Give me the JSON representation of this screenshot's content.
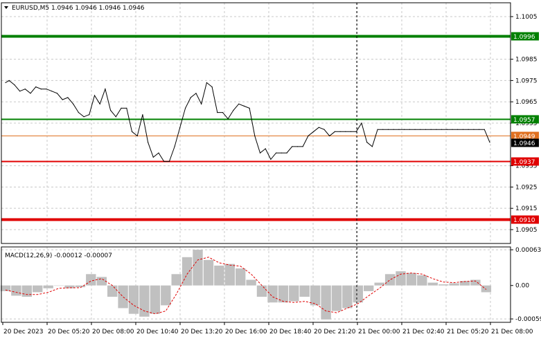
{
  "header": {
    "symbol_line": "EURUSD,M5  1.0946 1.0946 1.0946 1.0946"
  },
  "macd": {
    "label": "MACD(12,26,9) -0.00012 -0.00007"
  },
  "colors": {
    "background": "#ffffff",
    "grid": "#c8c8c8",
    "price_line": "#000000",
    "green_level": "#008000",
    "red_level": "#e00000",
    "bid_line": "#e07020",
    "macd_hist": "#c0c0c0",
    "macd_signal": "#e00000"
  },
  "chart_data": [
    {
      "type": "line",
      "name": "EURUSD,M5 price",
      "ylim": [
        1.08985,
        1.10115
      ],
      "y_ticks": [
        "1.1005",
        "1.0985",
        "1.0975",
        "1.0965",
        "1.0955",
        "1.0935",
        "1.0925",
        "1.0915",
        "1.0905"
      ],
      "x_ticks": [
        "20 Dec 2023",
        "20 Dec 05:20",
        "20 Dec 08:00",
        "20 Dec 10:40",
        "20 Dec 13:20",
        "20 Dec 16:00",
        "20 Dec 18:40",
        "20 Dec 21:20",
        "21 Dec 00:00",
        "21 Dec 02:40",
        "21 Dec 05:20",
        "21 Dec 08:00"
      ],
      "x_index": [
        0,
        2,
        5,
        8,
        11,
        14,
        17,
        20,
        23,
        26,
        29,
        32,
        35,
        38,
        41,
        44,
        47,
        50,
        53,
        56,
        59,
        62,
        65,
        68,
        71,
        74,
        77,
        80,
        83,
        86,
        89,
        92,
        95,
        98,
        101,
        104,
        107,
        110,
        113,
        116,
        119,
        122,
        125,
        128,
        131,
        134,
        137,
        140,
        143,
        146,
        149,
        152,
        155,
        158,
        161,
        164,
        167,
        170,
        173,
        176,
        179,
        182,
        185,
        188,
        191,
        194,
        197,
        200,
        203,
        206,
        209,
        212,
        215,
        218,
        221,
        224,
        227,
        230,
        233,
        236,
        239,
        242,
        245,
        248,
        251,
        254,
        257,
        260,
        263,
        266,
        269,
        272
      ],
      "values": [
        1.0974,
        1.0975,
        1.0973,
        1.097,
        1.0971,
        1.0969,
        1.0972,
        1.0971,
        1.0971,
        1.097,
        1.0969,
        1.0966,
        1.0967,
        1.0964,
        1.096,
        1.0958,
        1.0959,
        1.0968,
        1.0964,
        1.0971,
        1.0961,
        1.0958,
        1.0962,
        1.0962,
        1.0951,
        1.0949,
        1.0959,
        1.0946,
        1.0939,
        1.0941,
        1.0937,
        1.0937,
        1.0944,
        1.0953,
        1.0962,
        1.0967,
        1.0969,
        1.0964,
        1.0974,
        1.0972,
        1.096,
        1.096,
        1.0957,
        1.0961,
        1.0964,
        1.0963,
        1.0962,
        1.0949,
        1.0941,
        1.0943,
        1.0938,
        1.0941,
        1.0941,
        1.0941,
        1.0944,
        1.0944,
        1.0944,
        1.0949,
        1.0951,
        1.0953,
        1.0952,
        1.0949,
        1.0951,
        1.0951,
        1.0951,
        1.0951,
        1.0951,
        1.0955,
        1.0946,
        1.0944,
        1.0952,
        1.0952,
        1.0952,
        1.0952,
        1.0952,
        1.0952,
        1.0952,
        1.0952,
        1.0952,
        1.0952,
        1.0952,
        1.0952,
        1.0952,
        1.0952,
        1.0952,
        1.0952,
        1.0952,
        1.0952,
        1.0952,
        1.0952,
        1.0952,
        1.0946
      ],
      "levels": [
        {
          "value": 1.0996,
          "label": "1.0996",
          "kind": "green"
        },
        {
          "value": 1.0957,
          "label": "1.0957",
          "kind": "green"
        },
        {
          "value": 1.0949,
          "label": "1.0949",
          "kind": "bid"
        },
        {
          "value": 1.0946,
          "label": "1.0946",
          "kind": "current"
        },
        {
          "value": 1.0937,
          "label": "1.0937",
          "kind": "red"
        },
        {
          "value": 1.091,
          "label": "1.0910",
          "kind": "red"
        }
      ],
      "grid": true
    },
    {
      "type": "bar",
      "name": "MACD(12,26,9)",
      "ylim": [
        -0.00065,
        0.00068
      ],
      "y_ticks": [
        "0.00063",
        "0.00",
        "-0.00059"
      ],
      "x_index": [
        0,
        6,
        12,
        18,
        24,
        30,
        36,
        42,
        48,
        54,
        60,
        66,
        72,
        78,
        84,
        90,
        96,
        102,
        108,
        114,
        120,
        126,
        132,
        138,
        144,
        150,
        156,
        162,
        168,
        174,
        180,
        186,
        192,
        198,
        204,
        210,
        216,
        222,
        228,
        234,
        240,
        246,
        252,
        258,
        264,
        270
      ],
      "values": [
        -0.0001,
        -0.00018,
        -0.0002,
        -0.00012,
        -5e-05,
        0.0,
        -5e-05,
        -3e-05,
        0.0002,
        0.00015,
        -0.0002,
        -0.0004,
        -0.0005,
        -0.00055,
        -0.0005,
        -0.00035,
        0.0002,
        0.0005,
        0.00063,
        0.00045,
        0.00035,
        0.00038,
        0.0003,
        0.0001,
        -0.0002,
        -0.0003,
        -0.0003,
        -0.00028,
        -0.0002,
        -0.00035,
        -0.0006,
        -0.00045,
        -0.0004,
        -0.0003,
        -0.0001,
        5e-05,
        0.0002,
        0.00025,
        0.00022,
        0.00018,
        5e-05,
        2e-05,
        4e-05,
        8e-05,
        0.0001,
        -0.00012
      ],
      "signal": [
        -8e-05,
        -0.00012,
        -0.00016,
        -0.00016,
        -0.00012,
        -5e-05,
        -4e-05,
        -4e-05,
        8e-05,
        0.00012,
        0.0,
        -0.0002,
        -0.00035,
        -0.00045,
        -0.0005,
        -0.00045,
        -0.00015,
        0.0002,
        0.00045,
        0.0005,
        0.0004,
        0.00036,
        0.00034,
        0.0002,
        0.0,
        -0.0002,
        -0.00028,
        -0.0003,
        -0.00028,
        -0.00032,
        -0.00045,
        -0.00048,
        -0.0004,
        -0.00032,
        -0.00018,
        -5e-05,
        0.0001,
        0.0002,
        0.00022,
        0.0002,
        0.00012,
        6e-05,
        5e-05,
        7e-05,
        8e-05,
        -7e-05
      ]
    }
  ]
}
